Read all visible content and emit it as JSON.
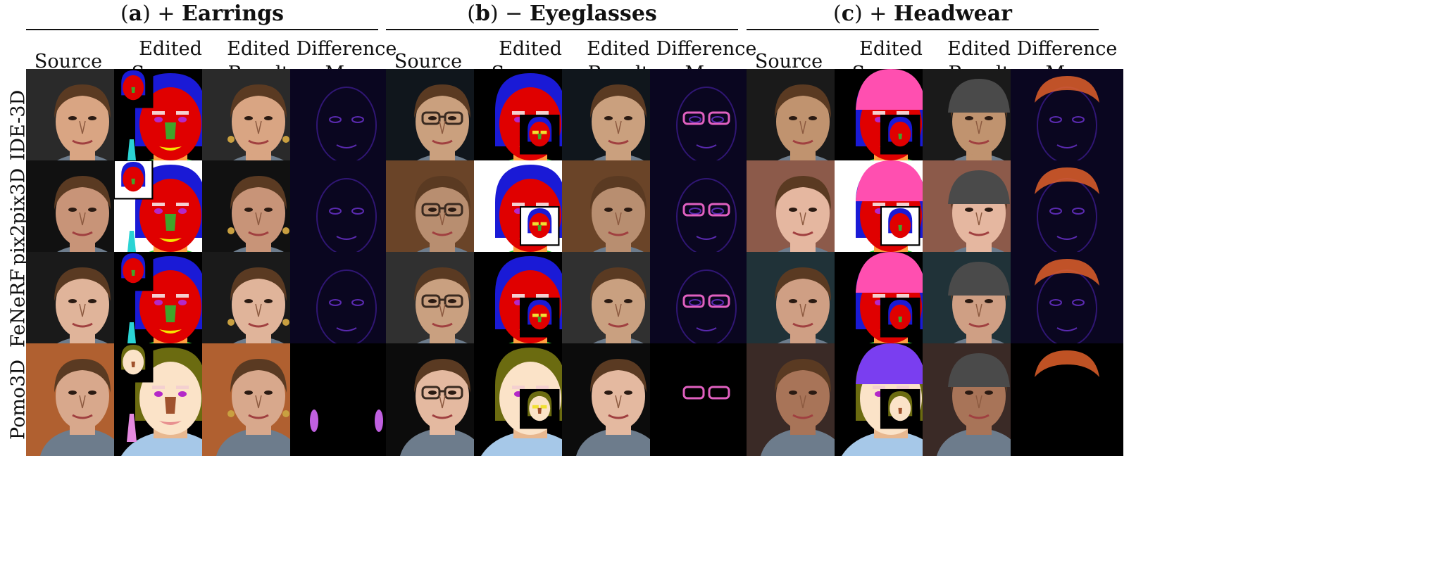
{
  "figure": {
    "sections": [
      {
        "letter": "a",
        "op": "+",
        "name": "Earrings"
      },
      {
        "letter": "b",
        "op": "−",
        "name": "Eyeglasses"
      },
      {
        "letter": "c",
        "op": "+",
        "name": "Headwear"
      }
    ],
    "column_headers": {
      "source": "Source",
      "segmap_line1": "Edited",
      "segmap_line2": "Segmap",
      "result_line1": "Edited",
      "result_line2": "Result",
      "diff_line1": "Difference",
      "diff_line2": "Map"
    },
    "methods": [
      "IDE-3D",
      "pix2pix3D",
      "FeNeRF",
      "Pomo3D"
    ]
  },
  "colors": {
    "face_red": "#e00000",
    "hair_blue": "#1a1ad6",
    "nose_green": "#3fa52a",
    "neck_orange": "#ffa040",
    "earring_cyan": "#2ad4d4",
    "lips_yellow": "#f5e600",
    "hat_pink": "#ff4fb0",
    "cloth_green": "#33cc33",
    "diff_dark": "#0a0620",
    "pomo_face": "#fbe3c8",
    "pomo_hair": "#6b6b10",
    "pomo_nose": "#a0522d"
  }
}
